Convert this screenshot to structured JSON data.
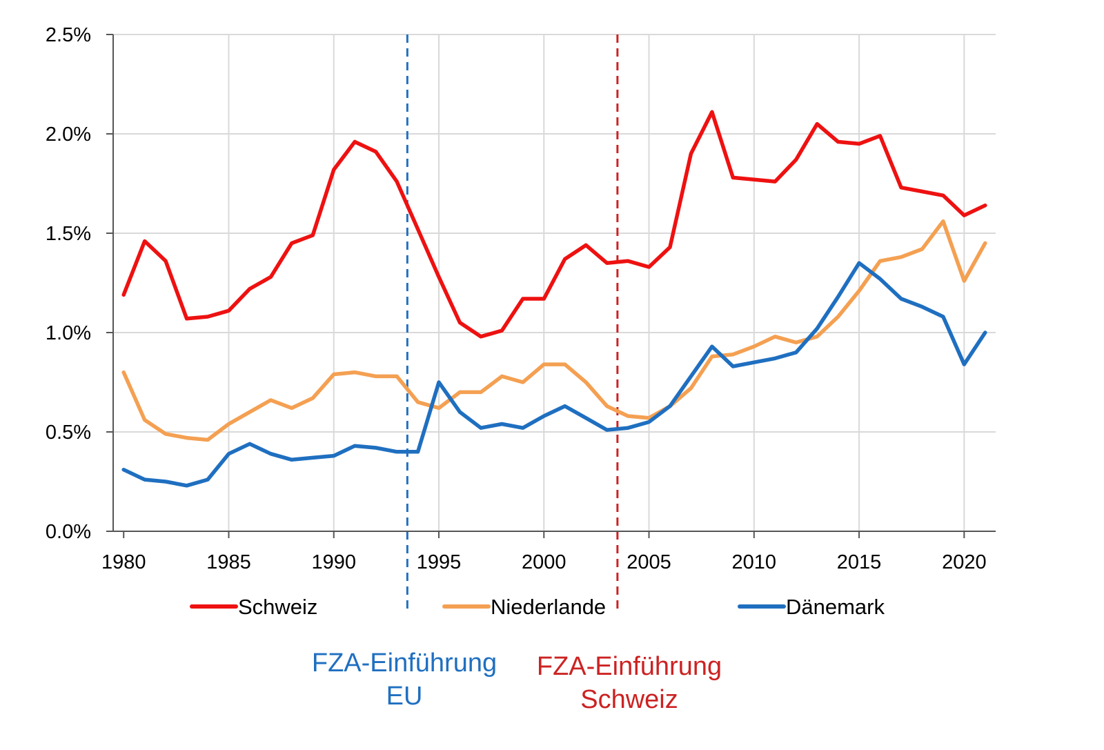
{
  "chart_data": {
    "type": "line",
    "title": "",
    "xlabel": "",
    "ylabel": "",
    "xlim": [
      1979.5,
      2021.5
    ],
    "ylim": [
      0,
      0.025
    ],
    "x_ticks": [
      1980,
      1985,
      1990,
      1995,
      2000,
      2005,
      2010,
      2015,
      2020
    ],
    "x_tick_labels": [
      "1980",
      "1985",
      "1990",
      "1995",
      "2000",
      "2005",
      "2010",
      "2015",
      "2020"
    ],
    "y_ticks": [
      0,
      0.005,
      0.01,
      0.015,
      0.02,
      0.025
    ],
    "y_tick_labels": [
      "0.0%",
      "0.5%",
      "1.0%",
      "1.5%",
      "2.0%",
      "2.5%"
    ],
    "grid": true,
    "legend_position": "bottom",
    "x": [
      1980,
      1981,
      1982,
      1983,
      1984,
      1985,
      1986,
      1987,
      1988,
      1989,
      1990,
      1991,
      1992,
      1993,
      1994,
      1995,
      1996,
      1997,
      1998,
      1999,
      2000,
      2001,
      2002,
      2003,
      2004,
      2005,
      2006,
      2007,
      2008,
      2009,
      2010,
      2011,
      2012,
      2013,
      2014,
      2015,
      2016,
      2017,
      2018,
      2019,
      2020,
      2021
    ],
    "series": [
      {
        "name": "Schweiz",
        "color": "#ee1111",
        "values": [
          0.0119,
          0.0146,
          0.0136,
          0.0107,
          0.0108,
          0.0111,
          0.0122,
          0.0128,
          0.0145,
          0.0149,
          0.0182,
          0.0196,
          0.0191,
          0.0176,
          0.0152,
          0.0128,
          0.0105,
          0.0098,
          0.0101,
          0.0117,
          0.0117,
          0.0137,
          0.0144,
          0.0135,
          0.0136,
          0.0133,
          0.0143,
          0.019,
          0.0211,
          0.0178,
          0.0177,
          0.0176,
          0.0187,
          0.0205,
          0.0196,
          0.0195,
          0.0199,
          0.0173,
          0.0171,
          0.0169,
          0.0159,
          0.0164
        ]
      },
      {
        "name": "Niederlande",
        "color": "#f4a052",
        "values": [
          0.008,
          0.0056,
          0.0049,
          0.0047,
          0.0046,
          0.0054,
          0.006,
          0.0066,
          0.0062,
          0.0067,
          0.0079,
          0.008,
          0.0078,
          0.0078,
          0.0065,
          0.0062,
          0.007,
          0.007,
          0.0078,
          0.0075,
          0.0084,
          0.0084,
          0.0075,
          0.0063,
          0.0058,
          0.0057,
          0.0063,
          0.0072,
          0.0088,
          0.0089,
          0.0093,
          0.0098,
          0.0095,
          0.0098,
          0.0108,
          0.0121,
          0.0136,
          0.0138,
          0.0142,
          0.0156,
          0.0126,
          0.0145
        ]
      },
      {
        "name": "Dänemark",
        "color": "#1f6fc0",
        "values": [
          0.0031,
          0.0026,
          0.0025,
          0.0023,
          0.0026,
          0.0039,
          0.0044,
          0.0039,
          0.0036,
          0.0037,
          0.0038,
          0.0043,
          0.0042,
          0.004,
          0.004,
          0.0075,
          0.006,
          0.0052,
          0.0054,
          0.0052,
          0.0058,
          0.0063,
          0.0057,
          0.0051,
          0.0052,
          0.0055,
          0.0063,
          0.0078,
          0.0093,
          0.0083,
          0.0085,
          0.0087,
          0.009,
          0.0102,
          0.0118,
          0.0135,
          0.0127,
          0.0117,
          0.0113,
          0.0108,
          0.0084,
          0.01
        ]
      }
    ],
    "annotations": [
      {
        "x": 1993.5,
        "color": "#1f6fc0",
        "lines": [
          "FZA-Einführung",
          "EU"
        ]
      },
      {
        "x": 2003.5,
        "color": "#cc2222",
        "lines": [
          "FZA-Einführung",
          "Schweiz"
        ]
      }
    ]
  }
}
